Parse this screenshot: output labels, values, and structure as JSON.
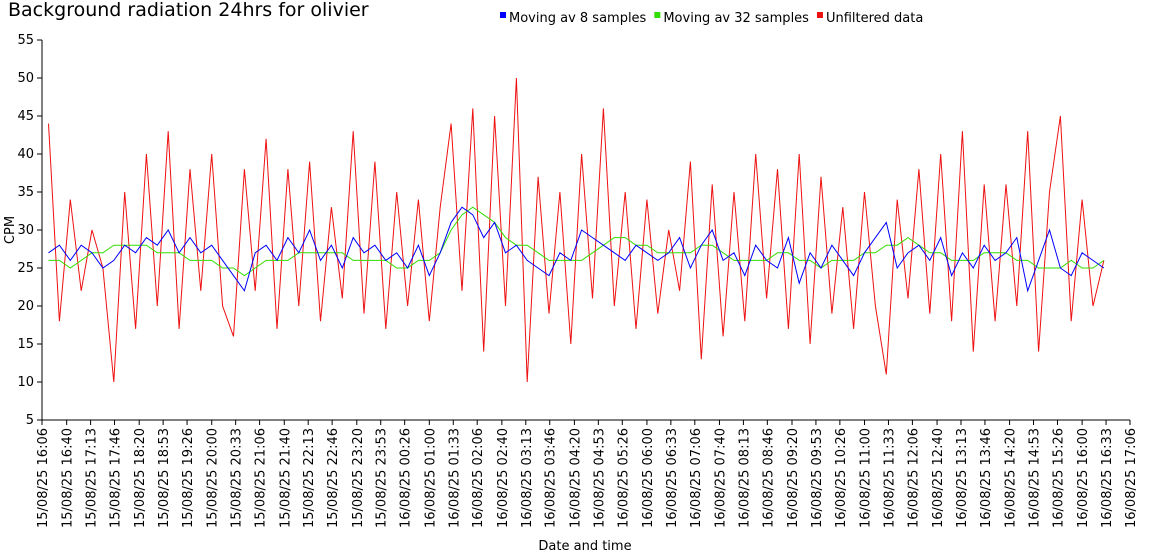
{
  "chart_data": {
    "type": "line",
    "title": "Background radiation 24hrs for olivier",
    "xlabel": "Date and time",
    "ylabel": "CPM",
    "legend": "top",
    "x": [
      "15/08/25 16:15",
      "15/08/25 16:30",
      "15/08/25 16:45",
      "15/08/25 17:00",
      "15/08/25 17:15",
      "15/08/25 17:30",
      "15/08/25 17:45",
      "15/08/25 18:00",
      "15/08/25 18:15",
      "15/08/25 18:30",
      "15/08/25 18:45",
      "15/08/25 19:00",
      "15/08/25 19:15",
      "15/08/25 19:30",
      "15/08/25 19:45",
      "15/08/25 20:00",
      "15/08/25 20:15",
      "15/08/25 20:30",
      "15/08/25 20:45",
      "15/08/25 21:00",
      "15/08/25 21:15",
      "15/08/25 21:30",
      "15/08/25 21:45",
      "15/08/25 22:00",
      "15/08/25 22:15",
      "15/08/25 22:30",
      "15/08/25 22:45",
      "15/08/25 23:00",
      "15/08/25 23:15",
      "15/08/25 23:30",
      "15/08/25 23:45",
      "16/08/25 00:00",
      "16/08/25 00:15",
      "16/08/25 00:30",
      "16/08/25 00:45",
      "16/08/25 01:00",
      "16/08/25 01:15",
      "16/08/25 01:30",
      "16/08/25 01:45",
      "16/08/25 02:00",
      "16/08/25 02:15",
      "16/08/25 02:30",
      "16/08/25 02:45",
      "16/08/25 03:00",
      "16/08/25 03:15",
      "16/08/25 03:30",
      "16/08/25 03:45",
      "16/08/25 04:00",
      "16/08/25 04:15",
      "16/08/25 04:30",
      "16/08/25 04:45",
      "16/08/25 05:00",
      "16/08/25 05:15",
      "16/08/25 05:30",
      "16/08/25 05:45",
      "16/08/25 06:00",
      "16/08/25 06:15",
      "16/08/25 06:30",
      "16/08/25 06:45",
      "16/08/25 07:00",
      "16/08/25 07:15",
      "16/08/25 07:30",
      "16/08/25 07:45",
      "16/08/25 08:00",
      "16/08/25 08:15",
      "16/08/25 08:30",
      "16/08/25 08:45",
      "16/08/25 09:00",
      "16/08/25 09:15",
      "16/08/25 09:30",
      "16/08/25 09:45",
      "16/08/25 10:00",
      "16/08/25 10:15",
      "16/08/25 10:30",
      "16/08/25 10:45",
      "16/08/25 11:00",
      "16/08/25 11:15",
      "16/08/25 11:30",
      "16/08/25 11:45",
      "16/08/25 12:00",
      "16/08/25 12:15",
      "16/08/25 12:30",
      "16/08/25 12:45",
      "16/08/25 13:00",
      "16/08/25 13:15",
      "16/08/25 13:30",
      "16/08/25 13:45",
      "16/08/25 14:00",
      "16/08/25 14:15",
      "16/08/25 14:30",
      "16/08/25 14:45",
      "16/08/25 15:00",
      "16/08/25 15:15",
      "16/08/25 15:30",
      "16/08/25 15:45",
      "16/08/25 16:00",
      "16/08/25 16:15",
      "16/08/25 16:30"
    ],
    "series": [
      {
        "name": "Moving av 8 samples",
        "color": "#0000ff",
        "values": [
          27,
          28,
          26,
          28,
          27,
          25,
          26,
          28,
          27,
          29,
          28,
          30,
          27,
          29,
          27,
          28,
          26,
          24,
          22,
          27,
          28,
          26,
          29,
          27,
          30,
          26,
          28,
          25,
          29,
          27,
          28,
          26,
          27,
          25,
          28,
          24,
          27,
          31,
          33,
          32,
          29,
          31,
          27,
          28,
          26,
          25,
          24,
          27,
          26,
          30,
          29,
          28,
          27,
          26,
          28,
          27,
          26,
          27,
          29,
          25,
          28,
          30,
          26,
          27,
          24,
          28,
          26,
          25,
          29,
          23,
          27,
          25,
          28,
          26,
          24,
          27,
          29,
          31,
          25,
          27,
          28,
          26,
          29,
          24,
          27,
          25,
          28,
          26,
          27,
          29,
          22,
          26,
          30,
          25,
          24,
          27,
          26,
          25
        ]
      },
      {
        "name": "Moving av 32 samples",
        "color": "#33dd00",
        "values": [
          26,
          26,
          25,
          26,
          27,
          27,
          28,
          28,
          28,
          28,
          27,
          27,
          27,
          26,
          26,
          26,
          25,
          25,
          24,
          25,
          26,
          26,
          26,
          27,
          27,
          27,
          27,
          27,
          26,
          26,
          26,
          26,
          25,
          25,
          26,
          26,
          27,
          30,
          32,
          33,
          32,
          31,
          29,
          28,
          28,
          27,
          26,
          26,
          26,
          26,
          27,
          28,
          29,
          29,
          28,
          28,
          27,
          27,
          27,
          27,
          28,
          28,
          27,
          26,
          26,
          26,
          26,
          27,
          27,
          26,
          26,
          25,
          26,
          26,
          26,
          27,
          27,
          28,
          28,
          29,
          28,
          27,
          27,
          26,
          26,
          26,
          27,
          27,
          27,
          26,
          26,
          25,
          25,
          25,
          26,
          25,
          25,
          26
        ]
      },
      {
        "name": "Unfiltered data",
        "color": "#ee1111",
        "values": [
          44,
          18,
          34,
          22,
          30,
          25,
          10,
          35,
          17,
          40,
          20,
          43,
          17,
          38,
          22,
          40,
          20,
          16,
          38,
          22,
          42,
          17,
          38,
          20,
          39,
          18,
          33,
          21,
          43,
          19,
          39,
          17,
          35,
          20,
          34,
          18,
          33,
          44,
          22,
          46,
          14,
          45,
          20,
          50,
          10,
          37,
          19,
          35,
          15,
          40,
          21,
          46,
          20,
          35,
          17,
          34,
          19,
          30,
          22,
          39,
          13,
          36,
          16,
          35,
          18,
          40,
          21,
          38,
          17,
          40,
          15,
          37,
          19,
          33,
          17,
          35,
          20,
          11,
          34,
          21,
          38,
          19,
          40,
          18,
          43,
          14,
          36,
          18,
          36,
          20,
          43,
          14,
          35,
          45,
          18,
          34,
          20,
          26
        ]
      }
    ],
    "xlim": [
      "15/08/25 16:06",
      "16/08/25 17:06"
    ],
    "xticks": [
      "15/08/25 16:06",
      "15/08/25 16:40",
      "15/08/25 17:13",
      "15/08/25 17:46",
      "15/08/25 18:20",
      "15/08/25 18:53",
      "15/08/25 19:26",
      "15/08/25 20:00",
      "15/08/25 20:33",
      "15/08/25 21:06",
      "15/08/25 21:40",
      "15/08/25 22:13",
      "15/08/25 22:46",
      "15/08/25 23:20",
      "15/08/25 23:53",
      "16/08/25 00:26",
      "16/08/25 01:00",
      "16/08/25 01:33",
      "16/08/25 02:06",
      "16/08/25 02:40",
      "16/08/25 03:13",
      "16/08/25 03:46",
      "16/08/25 04:20",
      "16/08/25 04:53",
      "16/08/25 05:26",
      "16/08/25 06:00",
      "16/08/25 06:33",
      "16/08/25 07:06",
      "16/08/25 07:40",
      "16/08/25 08:13",
      "16/08/25 08:46",
      "16/08/25 09:20",
      "16/08/25 09:53",
      "16/08/25 10:26",
      "16/08/25 11:00",
      "16/08/25 11:33",
      "16/08/25 12:06",
      "16/08/25 12:40",
      "16/08/25 13:13",
      "16/08/25 13:46",
      "16/08/25 14:20",
      "16/08/25 14:53",
      "16/08/25 15:26",
      "16/08/25 16:00",
      "16/08/25 16:33",
      "16/08/25 17:06"
    ],
    "ylim": [
      5,
      55
    ],
    "yticks": [
      5,
      10,
      15,
      20,
      25,
      30,
      35,
      40,
      45,
      50,
      55
    ],
    "grid": false
  }
}
